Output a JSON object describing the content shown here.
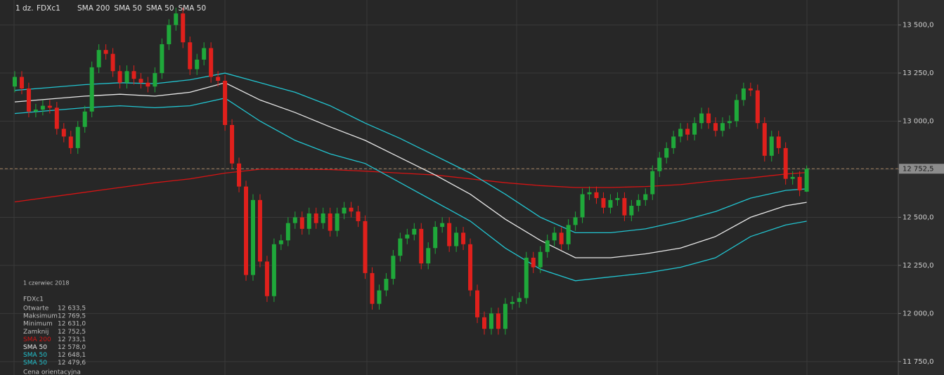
{
  "chart_data": {
    "type": "candlestick",
    "header": {
      "period": "1 dz.",
      "symbol": "FDXc1"
    },
    "grid": true,
    "ylim": [
      11680,
      13630
    ],
    "yticks": [
      {
        "value": 11750,
        "label": "11 750,0"
      },
      {
        "value": 12000,
        "label": "12 000,0"
      },
      {
        "value": 12250,
        "label": "12 250,0"
      },
      {
        "value": 12500,
        "label": "12 500,0"
      },
      {
        "value": 12750,
        "label": "12 750,0"
      },
      {
        "value": 13000,
        "label": "13 000,0"
      },
      {
        "value": 13250,
        "label": "13 250,0"
      },
      {
        "value": 13500,
        "label": "13 500,0"
      }
    ],
    "last_price": {
      "value": 12752.5,
      "label": "12 752,5"
    },
    "candles": {
      "up_color": "#1fa83a",
      "down_color": "#e0201c",
      "open": [
        13180,
        13230,
        13170,
        13050,
        13060,
        13080,
        13070,
        12960,
        12920,
        12860,
        12970,
        13050,
        13280,
        13370,
        13350,
        13260,
        13200,
        13260,
        13220,
        13200,
        13180,
        13250,
        13400,
        13500,
        13560,
        13410,
        13270,
        13320,
        13380,
        13230,
        13210,
        12980,
        12780,
        12660,
        12200,
        12590,
        12270,
        12090,
        12360,
        12380,
        12470,
        12500,
        12440,
        12520,
        12470,
        12520,
        12430,
        12520,
        12550,
        12530,
        12480,
        12210,
        12050,
        12120,
        12180,
        12300,
        12390,
        12410,
        12440,
        12260,
        12340,
        12450,
        12470,
        12350,
        12420,
        12360,
        12120,
        11980,
        11920,
        12000,
        11920,
        12050,
        12060,
        12080,
        12290,
        12240,
        12320,
        12380,
        12420,
        12360,
        12460,
        12500,
        12620,
        12630,
        12600,
        12550,
        12590,
        12600,
        12510,
        12560,
        12590,
        12620,
        12740,
        12810,
        12860,
        12920,
        12960,
        12930,
        12990,
        13040,
        12990,
        12950,
        12990,
        13000,
        13110,
        13170,
        13160,
        12990,
        12820,
        12920,
        12860,
        12700,
        12710,
        12633.5
      ],
      "high": [
        13260,
        13260,
        13200,
        13090,
        13110,
        13110,
        13100,
        12990,
        12950,
        13000,
        13080,
        13310,
        13400,
        13400,
        13380,
        13290,
        13290,
        13290,
        13250,
        13230,
        13280,
        13430,
        13530,
        13590,
        13590,
        13440,
        13350,
        13410,
        13410,
        13260,
        13240,
        13010,
        12810,
        12690,
        12620,
        12620,
        12300,
        12390,
        12410,
        12500,
        12530,
        12530,
        12550,
        12550,
        12550,
        12550,
        12550,
        12580,
        12580,
        12560,
        12510,
        12240,
        12150,
        12210,
        12330,
        12420,
        12440,
        12470,
        12470,
        12370,
        12480,
        12500,
        12500,
        12450,
        12450,
        12390,
        12150,
        12010,
        12030,
        12030,
        12080,
        12090,
        12110,
        12320,
        12320,
        12350,
        12410,
        12450,
        12450,
        12490,
        12530,
        12650,
        12660,
        12660,
        12630,
        12620,
        12630,
        12630,
        12590,
        12620,
        12650,
        12770,
        12840,
        12890,
        12950,
        12990,
        12990,
        13020,
        13070,
        13070,
        13020,
        13020,
        13030,
        13140,
        13200,
        13200,
        13190,
        13020,
        12950,
        12950,
        12890,
        12740,
        12740,
        12769.5
      ],
      "low": [
        13150,
        13140,
        13020,
        13020,
        13030,
        13040,
        12930,
        12890,
        12830,
        12830,
        12940,
        13020,
        13250,
        13320,
        13230,
        13170,
        13170,
        13190,
        13170,
        13150,
        13150,
        13220,
        13370,
        13470,
        13380,
        13240,
        13240,
        13290,
        13200,
        13180,
        12950,
        12750,
        12630,
        12170,
        12170,
        12240,
        12060,
        12060,
        12330,
        12350,
        12440,
        12410,
        12410,
        12440,
        12440,
        12400,
        12400,
        12490,
        12500,
        12450,
        12180,
        12020,
        12020,
        12090,
        12150,
        12270,
        12360,
        12380,
        12230,
        12230,
        12310,
        12420,
        12320,
        12320,
        12330,
        12090,
        11950,
        11890,
        11890,
        11890,
        11890,
        12020,
        12030,
        12050,
        12210,
        12210,
        12290,
        12350,
        12330,
        12330,
        12430,
        12470,
        12590,
        12570,
        12520,
        12520,
        12560,
        12480,
        12480,
        12530,
        12560,
        12590,
        12710,
        12780,
        12830,
        12890,
        12900,
        12900,
        12960,
        12960,
        12920,
        12920,
        12960,
        12970,
        13080,
        13130,
        12960,
        12790,
        12790,
        12830,
        12670,
        12670,
        12610,
        12631
      ],
      "close": [
        13230,
        13170,
        13050,
        13060,
        13080,
        13070,
        12960,
        12920,
        12860,
        12970,
        13050,
        13280,
        13370,
        13350,
        13260,
        13200,
        13260,
        13220,
        13200,
        13180,
        13250,
        13400,
        13500,
        13560,
        13410,
        13270,
        13320,
        13380,
        13230,
        13210,
        12980,
        12780,
        12660,
        12200,
        12590,
        12270,
        12090,
        12360,
        12380,
        12470,
        12500,
        12440,
        12520,
        12470,
        12520,
        12430,
        12520,
        12550,
        12530,
        12480,
        12210,
        12050,
        12120,
        12180,
        12300,
        12390,
        12410,
        12440,
        12260,
        12340,
        12450,
        12470,
        12350,
        12420,
        12360,
        12120,
        11980,
        11920,
        12000,
        11920,
        12050,
        12060,
        12080,
        12290,
        12240,
        12320,
        12380,
        12420,
        12360,
        12460,
        12500,
        12620,
        12630,
        12600,
        12550,
        12590,
        12600,
        12510,
        12560,
        12590,
        12620,
        12740,
        12810,
        12860,
        12920,
        12960,
        12930,
        12990,
        13040,
        12990,
        12950,
        12990,
        13000,
        13110,
        13170,
        13160,
        12990,
        12820,
        12920,
        12860,
        12700,
        12710,
        12640,
        12752.5
      ]
    },
    "series": [
      {
        "name": "SMA 200",
        "color": "#d41414",
        "x": [
          0,
          5,
          10,
          15,
          20,
          25,
          30,
          35,
          40,
          45,
          50,
          55,
          60,
          65,
          70,
          75,
          80,
          85,
          90,
          95,
          100,
          105,
          110,
          113
        ],
        "values": [
          12580,
          12605,
          12630,
          12655,
          12680,
          12700,
          12730,
          12750,
          12750,
          12748,
          12740,
          12730,
          12720,
          12700,
          12680,
          12665,
          12655,
          12655,
          12660,
          12670,
          12690,
          12705,
          12725,
          12733.1
        ]
      },
      {
        "name": "SMA 50",
        "color": "#e8e8e8",
        "x": [
          0,
          5,
          10,
          15,
          20,
          25,
          30,
          35,
          40,
          45,
          50,
          55,
          60,
          65,
          70,
          75,
          80,
          85,
          90,
          95,
          100,
          105,
          110,
          113
        ],
        "values": [
          13100,
          13115,
          13130,
          13140,
          13130,
          13150,
          13200,
          13110,
          13045,
          12970,
          12900,
          12810,
          12720,
          12620,
          12490,
          12380,
          12290,
          12290,
          12310,
          12340,
          12400,
          12500,
          12560,
          12578
        ]
      },
      {
        "name": "SMA 50",
        "color": "#22c4d0",
        "x": [
          0,
          5,
          10,
          15,
          20,
          25,
          30,
          35,
          40,
          45,
          50,
          55,
          60,
          65,
          70,
          75,
          80,
          85,
          90,
          95,
          100,
          105,
          110,
          113
        ],
        "values": [
          13160,
          13175,
          13190,
          13200,
          13195,
          13215,
          13250,
          13200,
          13150,
          13080,
          12990,
          12910,
          12820,
          12730,
          12620,
          12500,
          12420,
          12420,
          12440,
          12480,
          12530,
          12600,
          12640,
          12648.1
        ]
      },
      {
        "name": "SMA 50",
        "color": "#22c4d0",
        "x": [
          0,
          5,
          10,
          15,
          20,
          25,
          30,
          35,
          40,
          45,
          50,
          55,
          60,
          65,
          70,
          75,
          80,
          85,
          90,
          95,
          100,
          105,
          110,
          113
        ],
        "values": [
          13040,
          13055,
          13070,
          13080,
          13070,
          13080,
          13120,
          13000,
          12900,
          12830,
          12780,
          12680,
          12580,
          12480,
          12340,
          12230,
          12170,
          12190,
          12210,
          12240,
          12290,
          12400,
          12460,
          12479.6
        ]
      }
    ],
    "info": {
      "date": "1 czerwiec 2018",
      "symbol": "FDXc1",
      "rows": [
        {
          "label": "Otwarte",
          "value": "12 633,5"
        },
        {
          "label": "Maksimum",
          "value": "12 769,5"
        },
        {
          "label": "Minimum",
          "value": "12 631,0"
        },
        {
          "label": "Zamknij",
          "value": "12 752,5"
        },
        {
          "label": "SMA 200",
          "value": "12 733,1",
          "color": "#d41414"
        },
        {
          "label": "SMA 50",
          "value": "12 578,0",
          "color": "#e8e8e8"
        },
        {
          "label": "SMA 50",
          "value": "12 648,1",
          "color": "#22c4d0"
        },
        {
          "label": "SMA 50",
          "value": "12 479,6",
          "color": "#22c4d0"
        }
      ],
      "footer": "Cena orientacyjna"
    }
  }
}
